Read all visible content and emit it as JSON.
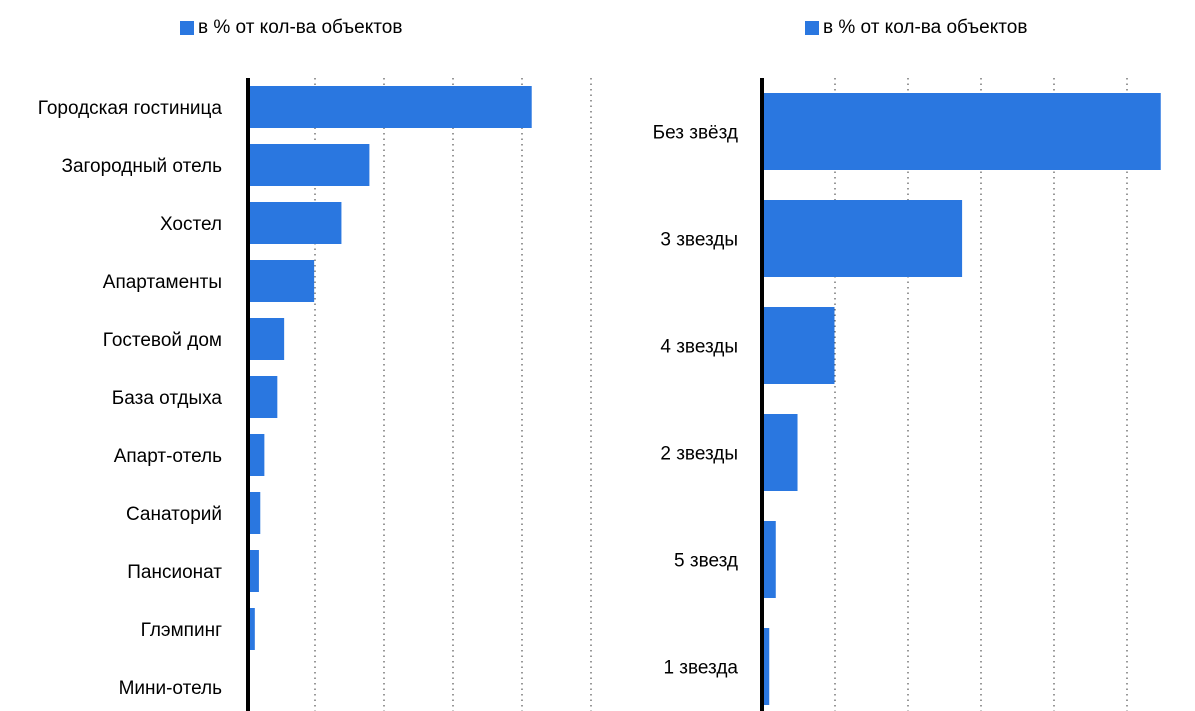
{
  "colors": {
    "bar": "#2a77e0",
    "axis": "#000000",
    "grid": "#555555",
    "text": "#000000"
  },
  "chart_data": [
    {
      "type": "bar",
      "orientation": "horizontal",
      "legend_position": "top",
      "grid": true,
      "xlim": [
        0,
        100
      ],
      "series": [
        {
          "name": "в % от кол-ва объектов"
        }
      ],
      "categories": [
        "Городская гостиница",
        "Загородный отель",
        "Хостел",
        "Апартаменты",
        "Гостевой дом",
        "База отдыха",
        "Апарт-отель",
        "Санаторий",
        "Пансионат",
        "Глэмпинг",
        "Мини-отель"
      ],
      "values": [
        41.6,
        17.8,
        13.7,
        9.7,
        5.3,
        4.3,
        2.4,
        1.8,
        1.6,
        1.0,
        0.2
      ]
    },
    {
      "type": "bar",
      "orientation": "horizontal",
      "legend_position": "top",
      "grid": true,
      "xlim": [
        0,
        60
      ],
      "series": [
        {
          "name": "в % от кол-ва объектов"
        }
      ],
      "categories": [
        "Без звёзд",
        "3 звезды",
        "4 звезды",
        "2 звезды",
        "5 звезд",
        "1 звезда"
      ],
      "values": [
        55.0,
        27.6,
        10.0,
        4.9,
        1.9,
        1.0
      ]
    }
  ]
}
